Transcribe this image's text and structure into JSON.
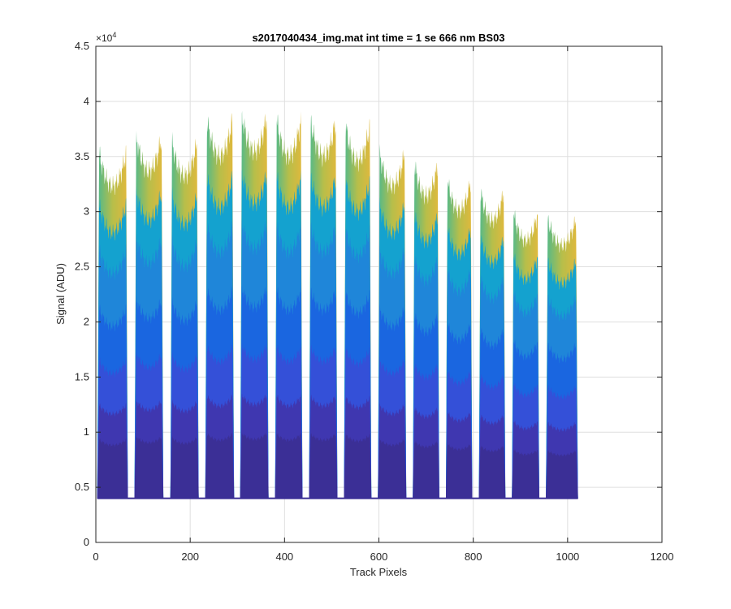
{
  "chart_data": {
    "type": "area",
    "title": "s2017040434_img.mat int time = 1 se  666 nm BS03",
    "xlabel": "Track Pixels",
    "ylabel": "Signal (ADU)",
    "xlim": [
      0,
      1200
    ],
    "ylim": [
      0,
      45000
    ],
    "x_ticks": [
      0,
      200,
      400,
      600,
      800,
      1000,
      1200
    ],
    "y_ticks": [
      0,
      5000,
      10000,
      15000,
      20000,
      25000,
      30000,
      35000,
      40000,
      45000
    ],
    "x_tick_labels": [
      "0",
      "200",
      "400",
      "600",
      "800",
      "1000",
      "1200"
    ],
    "y_tick_labels": [
      "0",
      "0.5",
      "1",
      "1.5",
      "2",
      "2.5",
      "3",
      "3.5",
      "4",
      "4.5"
    ],
    "y_exponent_label": "×10",
    "y_exponent_power": "4",
    "grid": true,
    "baseline": 4000,
    "tracks": [
      {
        "start": 3,
        "end": 68,
        "peak": 35500
      },
      {
        "start": 82,
        "end": 143,
        "peak": 37000
      },
      {
        "start": 158,
        "end": 218,
        "peak": 36500
      },
      {
        "start": 232,
        "end": 293,
        "peak": 38500
      },
      {
        "start": 306,
        "end": 366,
        "peak": 39000
      },
      {
        "start": 380,
        "end": 438,
        "peak": 38500
      },
      {
        "start": 452,
        "end": 512,
        "peak": 38500
      },
      {
        "start": 526,
        "end": 584,
        "peak": 38000
      },
      {
        "start": 598,
        "end": 658,
        "peak": 35500
      },
      {
        "start": 672,
        "end": 728,
        "peak": 34500
      },
      {
        "start": 742,
        "end": 798,
        "peak": 33000
      },
      {
        "start": 812,
        "end": 868,
        "peak": 32000
      },
      {
        "start": 882,
        "end": 940,
        "peak": 30000
      },
      {
        "start": 954,
        "end": 1022,
        "peak": 29500
      }
    ],
    "layer_fractions": [
      0.17,
      0.27,
      0.4,
      0.55,
      0.72,
      0.85,
      1.0
    ],
    "layer_colors": [
      "#3b2f96",
      "#3f37b0",
      "#3450d8",
      "#1a66e0",
      "#1f86d9",
      "#14a2cf",
      "#7fbd6d"
    ],
    "top_gradient": [
      "#4fb98c",
      "#b7be4a",
      "#e2b83c"
    ]
  }
}
